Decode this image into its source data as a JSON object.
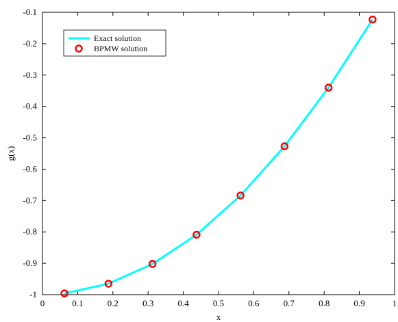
{
  "chart_data": {
    "type": "line",
    "title": "",
    "xlabel": "x",
    "ylabel": "g(x)",
    "xlim": [
      0,
      1
    ],
    "ylim": [
      -1,
      -0.1
    ],
    "xticks": [
      0,
      0.1,
      0.2,
      0.3,
      0.4,
      0.5,
      0.6,
      0.7,
      0.8,
      0.9,
      1
    ],
    "xtick_labels": [
      "0",
      "0.1",
      "0.2",
      "0.3",
      "0.4",
      "0.5",
      "0.6",
      "0.7",
      "0.8",
      "0.9",
      "1"
    ],
    "yticks": [
      -1,
      -0.9,
      -0.8,
      -0.7,
      -0.6,
      -0.5,
      -0.4,
      -0.3,
      -0.2,
      -0.1
    ],
    "ytick_labels": [
      "-1",
      "-0.9",
      "-0.8",
      "-0.7",
      "-0.6",
      "-0.5",
      "-0.4",
      "-0.3",
      "-0.2",
      "-0.1"
    ],
    "grid": false,
    "legend_position": "top-left",
    "series": [
      {
        "name": "Exact solution",
        "kind": "line",
        "color": "#00ffff",
        "x": [
          0.0625,
          0.1875,
          0.3125,
          0.4375,
          0.5625,
          0.6875,
          0.8125,
          0.9375
        ],
        "y": [
          -0.996,
          -0.965,
          -0.902,
          -0.809,
          -0.684,
          -0.527,
          -0.34,
          -0.123
        ]
      },
      {
        "name": "BPMW solution",
        "kind": "marker",
        "color": "#ff0000",
        "marker": "circle",
        "x": [
          0.0625,
          0.1875,
          0.3125,
          0.4375,
          0.5625,
          0.6875,
          0.8125,
          0.9375
        ],
        "y": [
          -0.996,
          -0.965,
          -0.902,
          -0.809,
          -0.684,
          -0.527,
          -0.34,
          -0.123
        ]
      }
    ]
  }
}
